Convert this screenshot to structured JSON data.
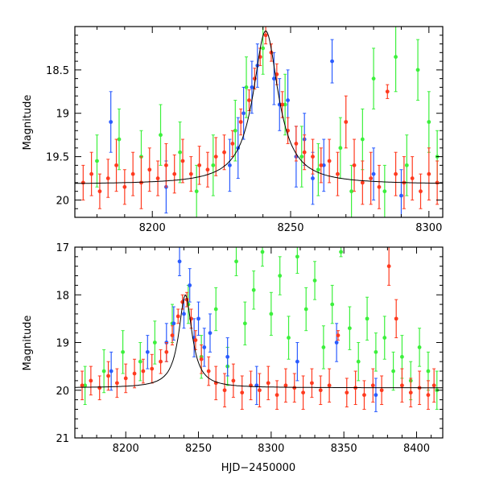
{
  "chart_data": [
    {
      "type": "scatter",
      "title": "",
      "xlabel": "",
      "ylabel": "Magnitude",
      "xlim": [
        8172,
        8305
      ],
      "ylim": [
        20.2,
        18.0
      ],
      "y_inverted": true,
      "grid": false,
      "legend": "none",
      "x_ticks": [
        "8200",
        "8250",
        "8300"
      ],
      "y_ticks": [
        "18.5",
        "19",
        "19.5",
        "20"
      ],
      "x_tick_values": [
        8200,
        8250,
        8300
      ],
      "y_tick_values": [
        18.5,
        19,
        19.5,
        20
      ],
      "model_curve": {
        "color": "#000000",
        "baseline": 19.82,
        "peak_x": 8241,
        "peak_y": 18.05,
        "width": 5.5
      },
      "series": [
        {
          "color": "#ff3a1f",
          "points": [
            [
              8175,
              19.8,
              0.2
            ],
            [
              8178,
              19.7,
              0.25
            ],
            [
              8181,
              19.9,
              0.2
            ],
            [
              8184,
              19.75,
              0.22
            ],
            [
              8187,
              19.6,
              0.3
            ],
            [
              8190,
              19.85,
              0.2
            ],
            [
              8193,
              19.7,
              0.25
            ],
            [
              8196,
              19.8,
              0.3
            ],
            [
              8199,
              19.65,
              0.25
            ],
            [
              8202,
              19.75,
              0.2
            ],
            [
              8205,
              19.6,
              0.25
            ],
            [
              8208,
              19.7,
              0.22
            ],
            [
              8211,
              19.55,
              0.25
            ],
            [
              8214,
              19.7,
              0.2
            ],
            [
              8217,
              19.6,
              0.22
            ],
            [
              8220,
              19.65,
              0.2
            ],
            [
              8223,
              19.5,
              0.22
            ],
            [
              8226,
              19.45,
              0.2
            ],
            [
              8229,
              19.35,
              0.15
            ],
            [
              8232,
              19.1,
              0.15
            ],
            [
              8235,
              18.85,
              0.12
            ],
            [
              8237,
              18.6,
              0.12
            ],
            [
              8239,
              18.35,
              0.1
            ],
            [
              8241,
              18.1,
              0.1
            ],
            [
              8243,
              18.3,
              0.1
            ],
            [
              8245,
              18.55,
              0.12
            ],
            [
              8247,
              18.9,
              0.15
            ],
            [
              8249,
              19.2,
              0.15
            ],
            [
              8252,
              19.35,
              0.2
            ],
            [
              8255,
              19.45,
              0.2
            ],
            [
              8258,
              19.5,
              0.2
            ],
            [
              8261,
              19.6,
              0.2
            ],
            [
              8264,
              19.55,
              0.25
            ],
            [
              8267,
              19.7,
              0.25
            ],
            [
              8270,
              19.1,
              0.3
            ],
            [
              8273,
              19.6,
              0.3
            ],
            [
              8276,
              19.8,
              0.25
            ],
            [
              8279,
              19.75,
              0.3
            ],
            [
              8282,
              19.85,
              0.25
            ],
            [
              8285,
              18.75,
              0.08
            ],
            [
              8288,
              19.7,
              0.25
            ],
            [
              8291,
              19.8,
              0.3
            ],
            [
              8294,
              19.75,
              0.25
            ],
            [
              8297,
              19.9,
              0.2
            ],
            [
              8300,
              19.7,
              0.3
            ],
            [
              8303,
              19.8,
              0.25
            ]
          ]
        },
        {
          "color": "#2b5cff",
          "points": [
            [
              8185,
              19.1,
              0.35
            ],
            [
              8205,
              19.85,
              0.3
            ],
            [
              8228,
              19.6,
              0.3
            ],
            [
              8231,
              19.4,
              0.35
            ],
            [
              8233,
              19.0,
              0.3
            ],
            [
              8236,
              18.7,
              0.3
            ],
            [
              8238,
              18.45,
              0.25
            ],
            [
              8244,
              18.6,
              0.3
            ],
            [
              8246,
              18.9,
              0.3
            ],
            [
              8249,
              18.85,
              0.35
            ],
            [
              8252,
              19.5,
              0.35
            ],
            [
              8255,
              19.3,
              0.3
            ],
            [
              8258,
              19.75,
              0.3
            ],
            [
              8262,
              19.6,
              0.3
            ],
            [
              8265,
              18.4,
              0.25
            ],
            [
              8280,
              19.7,
              0.3
            ],
            [
              8290,
              19.95,
              0.3
            ]
          ]
        },
        {
          "color": "#3cf03c",
          "points": [
            [
              8180,
              19.55,
              0.3
            ],
            [
              8188,
              19.3,
              0.35
            ],
            [
              8196,
              19.5,
              0.3
            ],
            [
              8203,
              19.25,
              0.35
            ],
            [
              8210,
              19.45,
              0.35
            ],
            [
              8216,
              19.9,
              0.3
            ],
            [
              8222,
              19.6,
              0.35
            ],
            [
              8230,
              19.2,
              0.35
            ],
            [
              8234,
              18.7,
              0.35
            ],
            [
              8240,
              18.25,
              0.3
            ],
            [
              8248,
              18.9,
              0.35
            ],
            [
              8254,
              19.5,
              0.35
            ],
            [
              8260,
              19.65,
              0.3
            ],
            [
              8268,
              19.4,
              0.35
            ],
            [
              8272,
              19.9,
              0.3
            ],
            [
              8276,
              19.3,
              0.35
            ],
            [
              8280,
              18.6,
              0.35
            ],
            [
              8284,
              19.9,
              0.3
            ],
            [
              8288,
              18.35,
              0.4
            ],
            [
              8292,
              19.6,
              0.35
            ],
            [
              8296,
              18.5,
              0.35
            ],
            [
              8300,
              19.1,
              0.35
            ],
            [
              8303,
              19.5,
              0.3
            ]
          ]
        }
      ]
    },
    {
      "type": "scatter",
      "title": "",
      "xlabel": "HJD−2450000",
      "ylabel": "Magnitude",
      "xlim": [
        8165,
        8418
      ],
      "ylim": [
        21,
        17
      ],
      "y_inverted": true,
      "grid": false,
      "legend": "none",
      "x_ticks": [
        "8200",
        "8250",
        "8300",
        "8350",
        "8400"
      ],
      "y_ticks": [
        "17",
        "18",
        "19",
        "20",
        "21"
      ],
      "x_tick_values": [
        8200,
        8250,
        8300,
        8350,
        8400
      ],
      "y_tick_values": [
        17,
        18,
        19,
        20,
        21
      ],
      "model_curve": {
        "color": "#000000",
        "baseline": 19.95,
        "peak_x": 8241,
        "peak_y": 18.0,
        "width": 5.5
      },
      "series": [
        {
          "color": "#ff3a1f",
          "points": [
            [
              8170,
              19.9,
              0.3
            ],
            [
              8176,
              19.8,
              0.3
            ],
            [
              8182,
              19.95,
              0.25
            ],
            [
              8188,
              19.7,
              0.3
            ],
            [
              8194,
              19.85,
              0.3
            ],
            [
              8200,
              19.75,
              0.3
            ],
            [
              8206,
              19.65,
              0.3
            ],
            [
              8212,
              19.6,
              0.25
            ],
            [
              8218,
              19.55,
              0.3
            ],
            [
              8224,
              19.4,
              0.25
            ],
            [
              8228,
              19.2,
              0.2
            ],
            [
              8232,
              18.85,
              0.2
            ],
            [
              8236,
              18.45,
              0.15
            ],
            [
              8239,
              18.15,
              0.15
            ],
            [
              8242,
              18.1,
              0.15
            ],
            [
              8245,
              18.5,
              0.2
            ],
            [
              8248,
              18.95,
              0.2
            ],
            [
              8252,
              19.35,
              0.3
            ],
            [
              8257,
              19.6,
              0.3
            ],
            [
              8262,
              19.85,
              0.35
            ],
            [
              8268,
              20.0,
              0.35
            ],
            [
              8274,
              19.8,
              0.35
            ],
            [
              8280,
              20.05,
              0.35
            ],
            [
              8286,
              19.9,
              0.3
            ],
            [
              8292,
              20.0,
              0.35
            ],
            [
              8298,
              19.85,
              0.35
            ],
            [
              8304,
              20.1,
              0.3
            ],
            [
              8310,
              19.9,
              0.35
            ],
            [
              8316,
              19.95,
              0.3
            ],
            [
              8322,
              20.05,
              0.35
            ],
            [
              8328,
              19.85,
              0.3
            ],
            [
              8334,
              20.0,
              0.3
            ],
            [
              8340,
              19.9,
              0.35
            ],
            [
              8346,
              18.85,
              0.1
            ],
            [
              8352,
              20.05,
              0.3
            ],
            [
              8358,
              19.95,
              0.35
            ],
            [
              8364,
              20.1,
              0.3
            ],
            [
              8370,
              19.9,
              0.35
            ],
            [
              8376,
              20.0,
              0.3
            ],
            [
              8381,
              17.4,
              0.4
            ],
            [
              8386,
              18.5,
              0.4
            ],
            [
              8390,
              19.9,
              0.35
            ],
            [
              8396,
              20.05,
              0.3
            ],
            [
              8402,
              19.95,
              0.35
            ],
            [
              8408,
              20.1,
              0.3
            ],
            [
              8412,
              19.9,
              0.35
            ]
          ]
        },
        {
          "color": "#2b5cff",
          "points": [
            [
              8190,
              19.6,
              0.4
            ],
            [
              8215,
              19.2,
              0.35
            ],
            [
              8228,
              19.0,
              0.4
            ],
            [
              8233,
              18.6,
              0.35
            ],
            [
              8237,
              17.3,
              0.3
            ],
            [
              8240,
              18.4,
              0.3
            ],
            [
              8244,
              17.8,
              0.35
            ],
            [
              8247,
              18.9,
              0.4
            ],
            [
              8250,
              18.5,
              0.35
            ],
            [
              8254,
              19.1,
              0.4
            ],
            [
              8258,
              18.8,
              0.4
            ],
            [
              8270,
              19.3,
              0.4
            ],
            [
              8290,
              19.9,
              0.4
            ],
            [
              8318,
              19.4,
              0.4
            ],
            [
              8345,
              19.0,
              0.4
            ],
            [
              8372,
              20.1,
              0.35
            ]
          ]
        },
        {
          "color": "#3cf03c",
          "points": [
            [
              8172,
              19.9,
              0.4
            ],
            [
              8185,
              19.6,
              0.45
            ],
            [
              8198,
              19.2,
              0.45
            ],
            [
              8210,
              19.4,
              0.4
            ],
            [
              8220,
              19.0,
              0.45
            ],
            [
              8232,
              18.6,
              0.4
            ],
            [
              8243,
              18.2,
              0.4
            ],
            [
              8252,
              19.3,
              0.45
            ],
            [
              8262,
              18.3,
              0.45
            ],
            [
              8270,
              19.5,
              0.4
            ],
            [
              8276,
              17.3,
              0.3
            ],
            [
              8282,
              18.6,
              0.45
            ],
            [
              8288,
              17.9,
              0.4
            ],
            [
              8294,
              17.1,
              0.3
            ],
            [
              8300,
              18.4,
              0.45
            ],
            [
              8306,
              17.6,
              0.4
            ],
            [
              8312,
              18.9,
              0.45
            ],
            [
              8318,
              17.2,
              0.35
            ],
            [
              8324,
              18.3,
              0.45
            ],
            [
              8330,
              17.7,
              0.4
            ],
            [
              8336,
              19.1,
              0.45
            ],
            [
              8342,
              18.2,
              0.4
            ],
            [
              8348,
              17.1,
              0.1
            ],
            [
              8354,
              18.7,
              0.45
            ],
            [
              8360,
              19.4,
              0.4
            ],
            [
              8366,
              18.5,
              0.45
            ],
            [
              8372,
              19.2,
              0.4
            ],
            [
              8378,
              18.9,
              0.45
            ],
            [
              8384,
              19.6,
              0.4
            ],
            [
              8390,
              19.3,
              0.45
            ],
            [
              8396,
              19.8,
              0.4
            ],
            [
              8402,
              19.1,
              0.4
            ],
            [
              8408,
              19.6,
              0.4
            ],
            [
              8414,
              20.0,
              0.4
            ]
          ]
        }
      ]
    }
  ]
}
